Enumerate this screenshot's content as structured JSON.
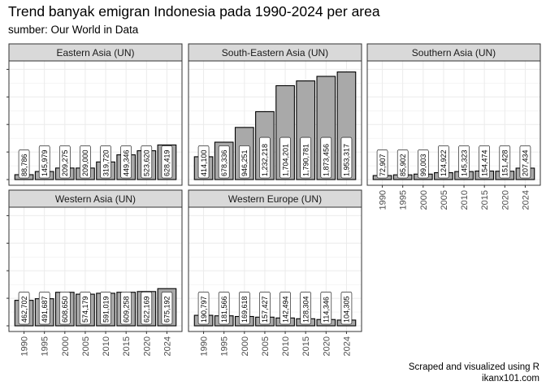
{
  "title": "Trend banyak emigran Indonesia pada 1990-2024 per area",
  "subtitle": "sumber: Our World in Data",
  "caption": [
    "Scraped and visualized using R",
    "ikanx101.com"
  ],
  "colors": {
    "bar_fill": "#a9a9a9",
    "bar_stroke": "#000000",
    "panel_background": "#ffffff",
    "grid": "#ebebeb",
    "strip_background": "#d9d9d9",
    "border": "#333333"
  },
  "chart_data": {
    "type": "bar",
    "facet": "area",
    "facet_scales": "shared y, x shown on bottom row of each column",
    "categories": [
      "1990",
      "1995",
      "2000",
      "2005",
      "2010",
      "2015",
      "2020",
      "2024"
    ],
    "ylim": [
      0,
      2050000
    ],
    "y_tick_labels_shown": false,
    "grid": true,
    "series": [
      {
        "name": "Eastern Asia (UN)",
        "values": [
          88786,
          145979,
          209275,
          209000,
          319720,
          449346,
          523620,
          628419
        ],
        "labels": [
          "88,786",
          "145,979",
          "209,275",
          "209,000",
          "319,720",
          "449,346",
          "523,620",
          "628,419"
        ]
      },
      {
        "name": "South-Eastern Asia (UN)",
        "values": [
          414100,
          678336,
          946251,
          1232218,
          1704201,
          1790781,
          1873456,
          1953317
        ],
        "labels": [
          "414,100",
          "678,336",
          "946,251",
          "1,232,218",
          "1,704,201",
          "1,790,781",
          "1,873,456",
          "1,953,317"
        ]
      },
      {
        "name": "Southern Asia (UN)",
        "values": [
          72907,
          85902,
          99003,
          124922,
          145323,
          154474,
          151428,
          207434
        ],
        "labels": [
          "72,907",
          "85,902",
          "99,003",
          "124,922",
          "145,323",
          "154,474",
          "151,428",
          "207,434"
        ]
      },
      {
        "name": "Western Asia (UN)",
        "values": [
          462702,
          491687,
          608650,
          574179,
          591019,
          609258,
          622169,
          675192
        ],
        "labels": [
          "462,702",
          "491,687",
          "608,650",
          "574,179",
          "591,019",
          "609,258",
          "622,169",
          "675,192"
        ]
      },
      {
        "name": "Western Europe (UN)",
        "values": [
          190797,
          181566,
          169618,
          157427,
          142494,
          128304,
          114346,
          104305
        ],
        "labels": [
          "190,797",
          "181,566",
          "169,618",
          "157,427",
          "142,494",
          "128,304",
          "114,346",
          "104,305"
        ]
      }
    ]
  }
}
